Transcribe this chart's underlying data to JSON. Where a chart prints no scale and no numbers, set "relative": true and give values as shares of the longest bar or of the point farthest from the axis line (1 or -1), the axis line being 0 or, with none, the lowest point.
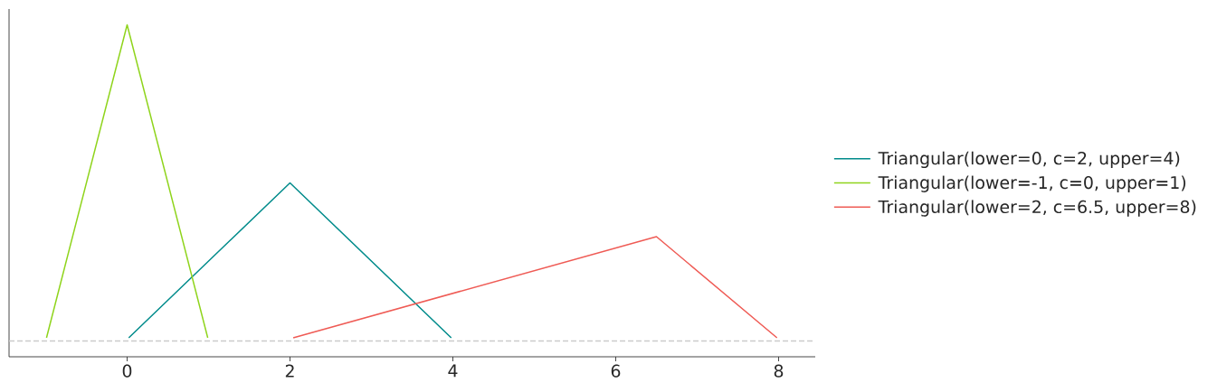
{
  "chart_data": {
    "type": "line",
    "relative": true,
    "legend": "right",
    "tick_labels": "x",
    "xlim": [
      -1.45,
      8.45
    ],
    "xticks": [
      0,
      2,
      4,
      6,
      8
    ],
    "series": [
      {
        "name": "Triangular(lower=0, c=2, upper=4)",
        "color": "#008b8b",
        "x": [
          0.02,
          2,
          3.98
        ],
        "values": [
          0.01,
          0.5,
          0.01
        ]
      },
      {
        "name": "Triangular(lower=-1, c=0, upper=1)",
        "color": "#8fd41c",
        "x": [
          -0.99,
          0,
          0.99
        ],
        "values": [
          0.01,
          1,
          0.01
        ]
      },
      {
        "name": "Triangular(lower=2, c=6.5, upper=8)",
        "color": "#ef5b55",
        "x": [
          2.04,
          6.5,
          7.98
        ],
        "values": [
          0.01,
          0.33,
          0.01
        ]
      }
    ],
    "ref_lines": [
      {
        "axis": "y",
        "value": 0,
        "color": "#cccccc",
        "line_style": "dashed"
      }
    ]
  }
}
